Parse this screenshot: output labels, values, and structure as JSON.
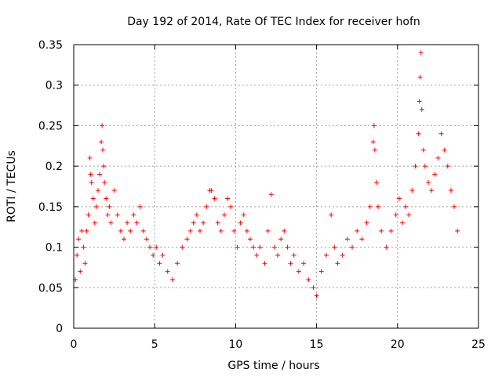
{
  "chart_data": {
    "type": "scatter",
    "title": "Day 192 of 2014, Rate Of TEC Index for receiver hofn",
    "xlabel": "GPS time / hours",
    "ylabel": "ROTI / TECUs",
    "xlim": [
      0,
      25
    ],
    "ylim": [
      0,
      0.35
    ],
    "x_ticks": [
      "0",
      "5",
      "10",
      "15",
      "20",
      "25"
    ],
    "y_ticks": [
      "0",
      "0.05",
      "0.1",
      "0.15",
      "0.2",
      "0.25",
      "0.3",
      "0.35"
    ],
    "grid": true,
    "marker": "+",
    "color": "#ff0000",
    "series": [
      {
        "points": [
          [
            0.1,
            0.06
          ],
          [
            0.2,
            0.09
          ],
          [
            0.3,
            0.11
          ],
          [
            0.4,
            0.07
          ],
          [
            0.5,
            0.12
          ],
          [
            0.6,
            0.1
          ],
          [
            0.7,
            0.08
          ],
          [
            0.8,
            0.12
          ],
          [
            0.9,
            0.14
          ],
          [
            1.0,
            0.21
          ],
          [
            1.05,
            0.19
          ],
          [
            1.1,
            0.18
          ],
          [
            1.2,
            0.16
          ],
          [
            1.3,
            0.13
          ],
          [
            1.4,
            0.15
          ],
          [
            1.5,
            0.17
          ],
          [
            1.6,
            0.19
          ],
          [
            1.7,
            0.23
          ],
          [
            1.75,
            0.25
          ],
          [
            1.8,
            0.22
          ],
          [
            1.85,
            0.2
          ],
          [
            1.9,
            0.18
          ],
          [
            2.0,
            0.16
          ],
          [
            2.1,
            0.14
          ],
          [
            2.2,
            0.15
          ],
          [
            2.3,
            0.13
          ],
          [
            2.5,
            0.17
          ],
          [
            2.7,
            0.14
          ],
          [
            2.9,
            0.12
          ],
          [
            3.1,
            0.11
          ],
          [
            3.3,
            0.13
          ],
          [
            3.5,
            0.12
          ],
          [
            3.7,
            0.14
          ],
          [
            3.9,
            0.13
          ],
          [
            4.1,
            0.15
          ],
          [
            4.3,
            0.12
          ],
          [
            4.5,
            0.11
          ],
          [
            4.7,
            0.1
          ],
          [
            4.9,
            0.09
          ],
          [
            5.1,
            0.1
          ],
          [
            5.3,
            0.08
          ],
          [
            5.5,
            0.09
          ],
          [
            5.8,
            0.07
          ],
          [
            6.1,
            0.06
          ],
          [
            6.4,
            0.08
          ],
          [
            6.7,
            0.1
          ],
          [
            7.0,
            0.11
          ],
          [
            7.2,
            0.12
          ],
          [
            7.4,
            0.13
          ],
          [
            7.6,
            0.14
          ],
          [
            7.8,
            0.12
          ],
          [
            8.0,
            0.13
          ],
          [
            8.2,
            0.15
          ],
          [
            8.4,
            0.17
          ],
          [
            8.5,
            0.17
          ],
          [
            8.7,
            0.16
          ],
          [
            8.9,
            0.13
          ],
          [
            9.1,
            0.12
          ],
          [
            9.3,
            0.14
          ],
          [
            9.5,
            0.16
          ],
          [
            9.7,
            0.15
          ],
          [
            9.9,
            0.12
          ],
          [
            10.1,
            0.1
          ],
          [
            10.3,
            0.13
          ],
          [
            10.5,
            0.14
          ],
          [
            10.7,
            0.12
          ],
          [
            10.9,
            0.11
          ],
          [
            11.1,
            0.1
          ],
          [
            11.3,
            0.09
          ],
          [
            11.5,
            0.1
          ],
          [
            11.8,
            0.08
          ],
          [
            12.0,
            0.12
          ],
          [
            12.2,
            0.165
          ],
          [
            12.4,
            0.1
          ],
          [
            12.6,
            0.09
          ],
          [
            12.8,
            0.11
          ],
          [
            13.0,
            0.12
          ],
          [
            13.2,
            0.1
          ],
          [
            13.4,
            0.08
          ],
          [
            13.6,
            0.09
          ],
          [
            13.9,
            0.07
          ],
          [
            14.2,
            0.08
          ],
          [
            14.5,
            0.06
          ],
          [
            14.8,
            0.05
          ],
          [
            15.0,
            0.04
          ],
          [
            15.3,
            0.07
          ],
          [
            15.6,
            0.09
          ],
          [
            15.9,
            0.14
          ],
          [
            16.1,
            0.1
          ],
          [
            16.3,
            0.08
          ],
          [
            16.6,
            0.09
          ],
          [
            16.9,
            0.11
          ],
          [
            17.2,
            0.1
          ],
          [
            17.5,
            0.12
          ],
          [
            17.8,
            0.11
          ],
          [
            18.1,
            0.13
          ],
          [
            18.3,
            0.15
          ],
          [
            18.5,
            0.23
          ],
          [
            18.55,
            0.25
          ],
          [
            18.6,
            0.22
          ],
          [
            18.7,
            0.18
          ],
          [
            18.8,
            0.15
          ],
          [
            19.0,
            0.12
          ],
          [
            19.3,
            0.1
          ],
          [
            19.6,
            0.12
          ],
          [
            19.9,
            0.14
          ],
          [
            20.1,
            0.16
          ],
          [
            20.3,
            0.13
          ],
          [
            20.5,
            0.15
          ],
          [
            20.7,
            0.14
          ],
          [
            20.9,
            0.17
          ],
          [
            21.1,
            0.2
          ],
          [
            21.3,
            0.24
          ],
          [
            21.35,
            0.28
          ],
          [
            21.4,
            0.31
          ],
          [
            21.45,
            0.34
          ],
          [
            21.5,
            0.27
          ],
          [
            21.6,
            0.22
          ],
          [
            21.7,
            0.2
          ],
          [
            21.9,
            0.18
          ],
          [
            22.1,
            0.17
          ],
          [
            22.3,
            0.19
          ],
          [
            22.5,
            0.21
          ],
          [
            22.7,
            0.24
          ],
          [
            22.9,
            0.22
          ],
          [
            23.1,
            0.2
          ],
          [
            23.3,
            0.17
          ],
          [
            23.5,
            0.15
          ],
          [
            23.7,
            0.12
          ]
        ]
      }
    ]
  }
}
